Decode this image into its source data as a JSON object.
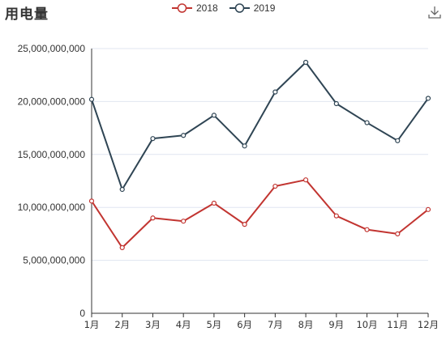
{
  "title": "用电量",
  "toolbox": {
    "download_icon": "download-icon"
  },
  "colors": {
    "s2018": "#c23531",
    "s2019": "#2f4554",
    "grid": "#e0e6f1",
    "axis": "#333333"
  },
  "chart_data": {
    "type": "line",
    "title": "用电量",
    "categories": [
      "1月",
      "2月",
      "3月",
      "4月",
      "5月",
      "6月",
      "7月",
      "8月",
      "9月",
      "10月",
      "11月",
      "12月"
    ],
    "series": [
      {
        "name": "2018",
        "values": [
          10600000000,
          6200000000,
          9000000000,
          8700000000,
          10400000000,
          8400000000,
          12000000000,
          12600000000,
          9200000000,
          7900000000,
          7500000000,
          9800000000
        ]
      },
      {
        "name": "2019",
        "values": [
          20200000000,
          11700000000,
          16500000000,
          16800000000,
          18700000000,
          15800000000,
          20900000000,
          23700000000,
          19800000000,
          18000000000,
          16300000000,
          20300000000
        ]
      }
    ],
    "ylim": [
      0,
      25000000000
    ],
    "yticks": [
      "0",
      "5,000,000,000",
      "10,000,000,000",
      "15,000,000,000",
      "20,000,000,000",
      "25,000,000,000"
    ],
    "ytick_values": [
      0,
      5000000000,
      10000000000,
      15000000000,
      20000000000,
      25000000000
    ],
    "grid": true,
    "legend_position": "top-center"
  }
}
